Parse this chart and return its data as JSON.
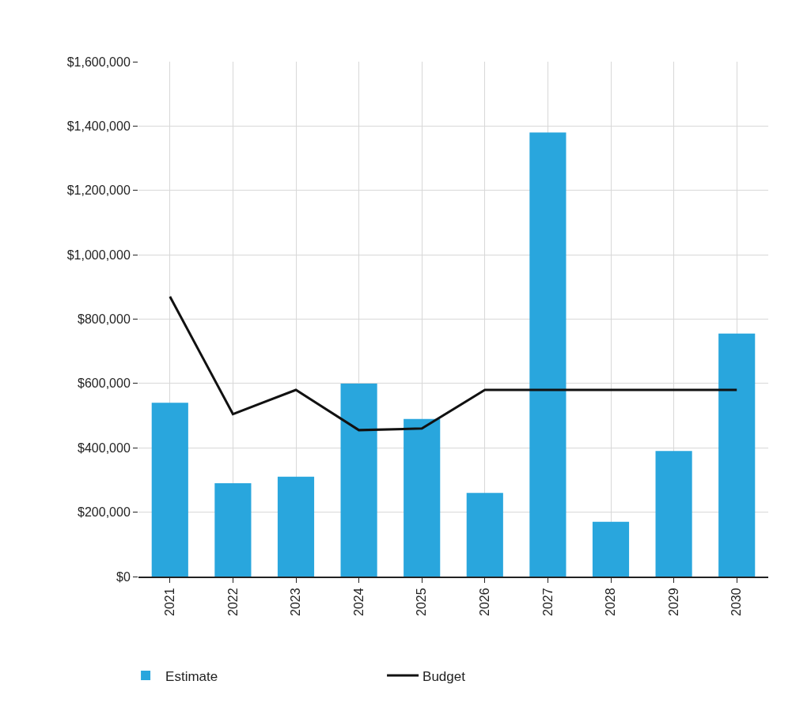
{
  "chart_data": {
    "type": "bar",
    "categories": [
      "2021",
      "2022",
      "2023",
      "2024",
      "2025",
      "2026",
      "2027",
      "2028",
      "2029",
      "2030"
    ],
    "series": [
      {
        "name": "Estimate",
        "color": "#29a6dd",
        "values": [
          540000,
          290000,
          310000,
          600000,
          490000,
          260000,
          1380000,
          170000,
          390000,
          755000
        ]
      },
      {
        "name": "Budget",
        "type": "line",
        "color": "#111111",
        "values": [
          870000,
          505000,
          580000,
          455000,
          460000,
          580000,
          580000,
          580000,
          580000,
          580000
        ]
      }
    ],
    "ylim": [
      0,
      1600000
    ],
    "yticks": [
      {
        "value": 0,
        "label": "$0"
      },
      {
        "value": 200000,
        "label": "$200,000"
      },
      {
        "value": 400000,
        "label": "$400,000"
      },
      {
        "value": 600000,
        "label": "$600,000"
      },
      {
        "value": 800000,
        "label": "$800,000"
      },
      {
        "value": 1000000,
        "label": "$1,000,000"
      },
      {
        "value": 1200000,
        "label": "$1,200,000"
      },
      {
        "value": 1400000,
        "label": "$1,400,000"
      },
      {
        "value": 1600000,
        "label": "$1,600,000"
      }
    ],
    "grid": true,
    "legend": "bottom left",
    "marker": "none",
    "line_style": "solid"
  }
}
